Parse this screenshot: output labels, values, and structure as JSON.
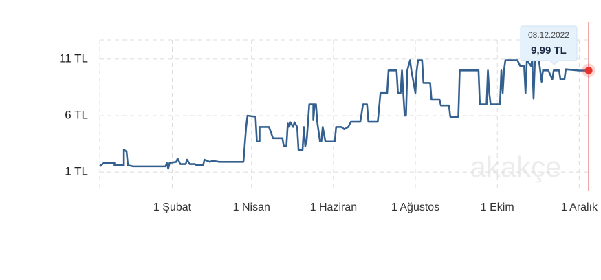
{
  "chart_data": {
    "type": "line",
    "color": "#34608f",
    "grid": true,
    "x": [
      -22,
      -19,
      -11,
      -11,
      -4,
      -4,
      -2,
      -1,
      3,
      27,
      28,
      29,
      30,
      35,
      36,
      38,
      42,
      43,
      45,
      49,
      50,
      55,
      56,
      60,
      62,
      67,
      85,
      87,
      88,
      94,
      95,
      97,
      97,
      104,
      107,
      114,
      115,
      117,
      118,
      119,
      120,
      122,
      123,
      125,
      126,
      129,
      130,
      131,
      132,
      133,
      134,
      137,
      137,
      138,
      139,
      140,
      142,
      143,
      144,
      146,
      153,
      154,
      158,
      160,
      163,
      165,
      172,
      174,
      177,
      178,
      185,
      187,
      192,
      193,
      199,
      200,
      202,
      203,
      205,
      206,
      207,
      209,
      210,
      213,
      214,
      215,
      218,
      219,
      224,
      225,
      231,
      232,
      238,
      239,
      245,
      246,
      260,
      261,
      266,
      267,
      268,
      269,
      276,
      277,
      278,
      279,
      280,
      289,
      291,
      294,
      295,
      296,
      299,
      300,
      301,
      302,
      305,
      307,
      308,
      312,
      315,
      316,
      320,
      321,
      324,
      325,
      335,
      342
    ],
    "values": [
      1.5,
      1.8,
      1.8,
      1.6,
      1.6,
      3.0,
      2.8,
      1.6,
      1.5,
      1.5,
      1.8,
      1.3,
      1.8,
      1.9,
      2.2,
      1.7,
      1.7,
      2.1,
      1.7,
      1.7,
      1.6,
      1.6,
      2.1,
      1.9,
      2.0,
      1.9,
      1.9,
      5.0,
      6.0,
      5.9,
      3.7,
      3.7,
      5.0,
      5.0,
      4.0,
      4.0,
      3.3,
      3.3,
      5.3,
      5.0,
      5.4,
      5.0,
      5.4,
      5.0,
      2.95,
      2.95,
      5.0,
      3.3,
      3.7,
      5.3,
      7.0,
      7.0,
      5.6,
      7.0,
      7.0,
      5.4,
      3.7,
      3.7,
      5.0,
      3.7,
      3.7,
      5.0,
      5.0,
      4.8,
      5.0,
      5.45,
      5.45,
      7.0,
      7.0,
      5.45,
      5.45,
      8.0,
      8.0,
      10.0,
      10.0,
      8.0,
      8.0,
      10.0,
      6.0,
      6.0,
      10.0,
      10.9,
      10.0,
      8.0,
      10.0,
      10.9,
      10.9,
      8.9,
      8.9,
      7.4,
      7.4,
      6.9,
      6.9,
      5.9,
      5.9,
      10.0,
      10.0,
      7.0,
      7.0,
      10.0,
      8.0,
      7.0,
      7.0,
      10.0,
      8.0,
      10.0,
      10.9,
      10.9,
      10.4,
      10.4,
      8.0,
      10.9,
      10.4,
      10.9,
      7.5,
      10.9,
      10.9,
      9.0,
      10.0,
      10.0,
      9.2,
      10.0,
      10.0,
      9.2,
      9.2,
      10.1,
      9.99,
      9.99
    ],
    "xlim": [
      -22,
      343
    ],
    "xticks": [
      {
        "value": 32,
        "label": "1 Şubat"
      },
      {
        "value": 91,
        "label": "1 Nisan"
      },
      {
        "value": 152,
        "label": "1 Haziran"
      },
      {
        "value": 213,
        "label": "1 Ağustos"
      },
      {
        "value": 274,
        "label": "1 Ekim"
      },
      {
        "value": 335,
        "label": "1 Aralık"
      }
    ],
    "ylim": [
      -0.7,
      12.7
    ],
    "yticks": [
      {
        "value": 1,
        "label": "1 TL"
      },
      {
        "value": 6,
        "label": "6 TL"
      },
      {
        "value": 11,
        "label": "11 TL"
      }
    ],
    "tooltip": {
      "date": "08.12.2022",
      "value": 9.99,
      "value_label": "9,99 TL"
    },
    "watermark": "akakçe"
  }
}
